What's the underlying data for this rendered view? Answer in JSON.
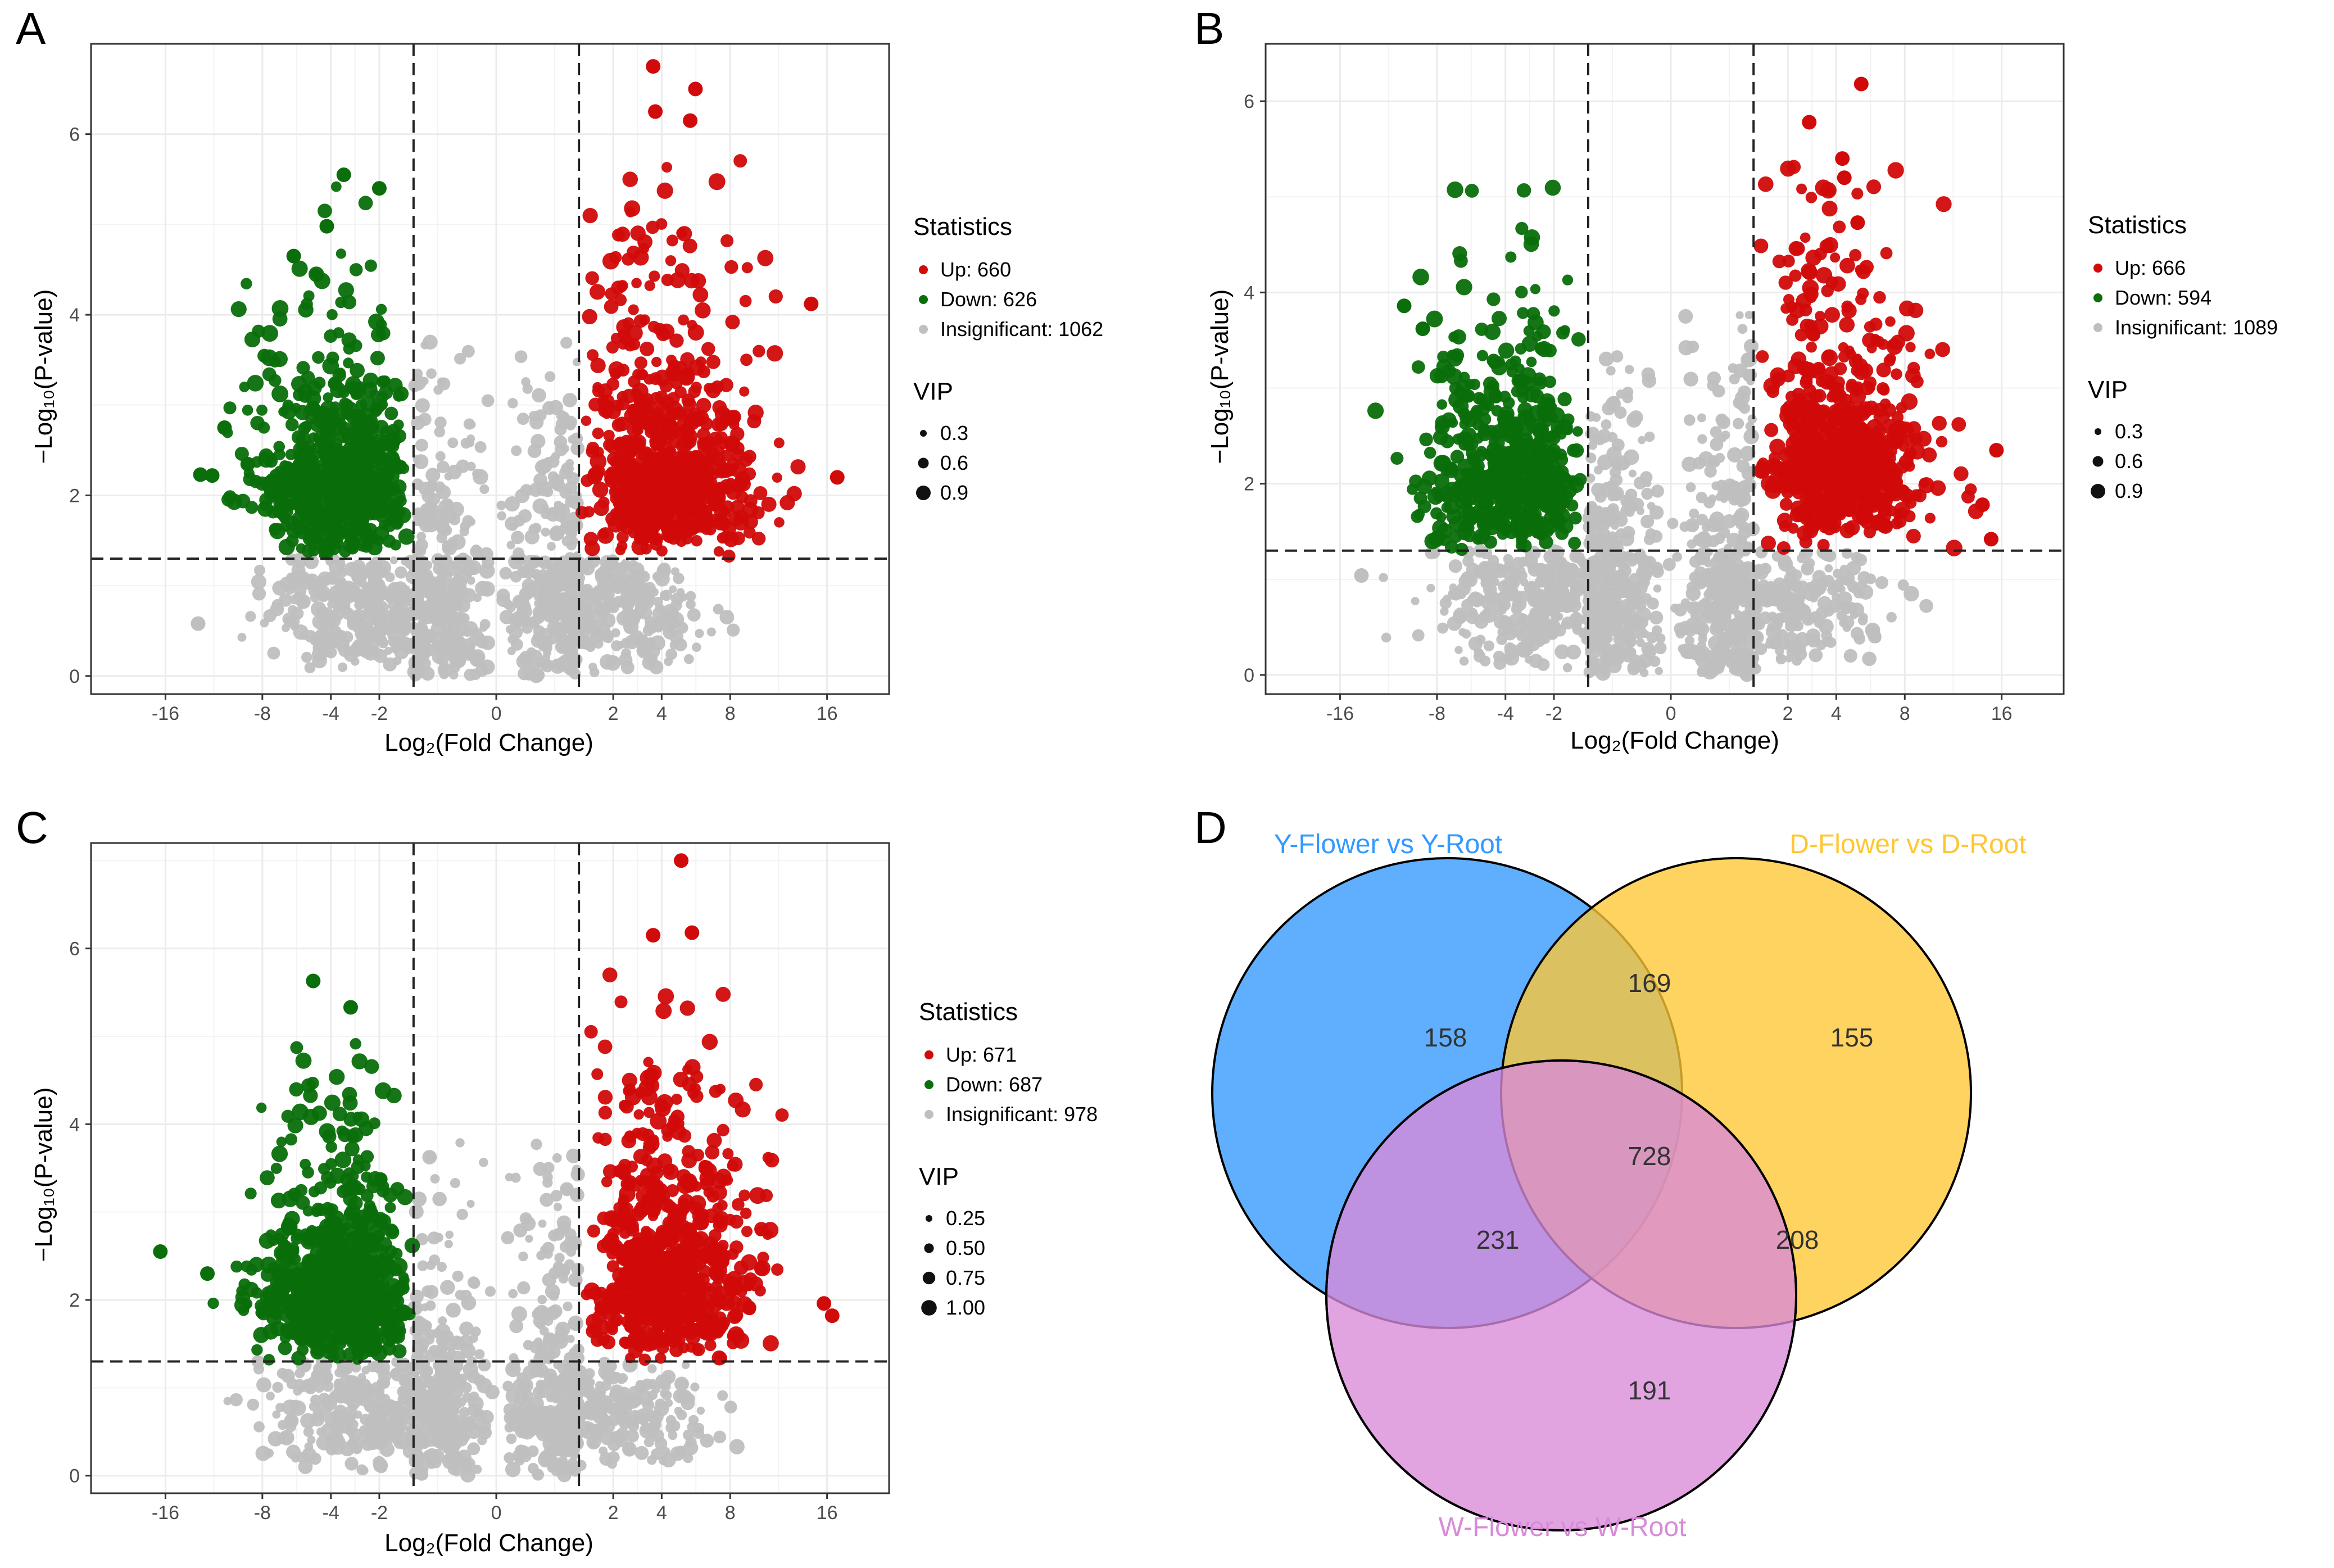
{
  "chart_data": [
    {
      "id": "A",
      "type": "scatter",
      "panel_label": "A",
      "xlabel": "Log₂(Fold Change)",
      "ylabel": "−Log₁₀(P-value)",
      "xticks": [
        "-16",
        "-8",
        "-4",
        "-2",
        "0",
        "2",
        "4",
        "8",
        "16"
      ],
      "yticks": [
        "0",
        "2",
        "4",
        "6"
      ],
      "ylim": [
        -0.2,
        7.0
      ],
      "threshold_log2fc": [
        -1,
        1
      ],
      "threshold_neglog10p": 1.3,
      "legend": {
        "statistics_title": "Statistics",
        "up": "Up: 660",
        "down": "Down: 626",
        "insignificant": "Insignificant: 1062",
        "vip_title": "VIP",
        "vip_sizes": [
          "0.3",
          "0.6",
          "0.9"
        ]
      },
      "counts": {
        "up": 660,
        "down": 626,
        "insignificant": 1062
      },
      "notable_points": [
        {
          "x": 3.6,
          "y": 6.75
        },
        {
          "x": 5.8,
          "y": 6.5
        },
        {
          "x": 3.7,
          "y": 6.25
        },
        {
          "x": 5.5,
          "y": 6.15
        },
        {
          "x": -3.4,
          "y": 5.55
        },
        {
          "x": -2.0,
          "y": 5.4
        },
        {
          "x": -4.2,
          "y": 4.98
        },
        {
          "x": -6.0,
          "y": 4.65
        },
        {
          "x": 14.5,
          "y": 4.12
        },
        {
          "x": 17.0,
          "y": 2.2
        },
        {
          "x": -11.8,
          "y": 2.22
        },
        {
          "x": -12.8,
          "y": 2.23
        },
        {
          "x": -10.8,
          "y": 2.75
        },
        {
          "x": -13.0,
          "y": 0.58
        }
      ]
    },
    {
      "id": "B",
      "type": "scatter",
      "panel_label": "B",
      "xlabel": "Log₂(Fold Change)",
      "ylabel": "−Log₁₀(P-value)",
      "xticks": [
        "-16",
        "-8",
        "-4",
        "-2",
        "0",
        "2",
        "4",
        "8",
        "16"
      ],
      "yticks": [
        "0",
        "2",
        "4",
        "6"
      ],
      "ylim": [
        -0.2,
        6.6
      ],
      "threshold_log2fc": [
        -1,
        1
      ],
      "threshold_neglog10p": 1.3,
      "legend": {
        "statistics_title": "Statistics",
        "up": "Up: 666",
        "down": "Down: 594",
        "insignificant": "Insignificant: 1089",
        "vip_title": "VIP",
        "vip_sizes": [
          "0.3",
          "0.6",
          "0.9"
        ]
      },
      "counts": {
        "up": 666,
        "down": 594,
        "insignificant": 1089
      },
      "notable_points": [
        {
          "x": 5.3,
          "y": 6.18
        },
        {
          "x": 2.8,
          "y": 5.78
        },
        {
          "x": 4.3,
          "y": 5.4
        },
        {
          "x": 4.4,
          "y": 5.2
        },
        {
          "x": 5.1,
          "y": 4.73
        },
        {
          "x": -10.4,
          "y": 3.86
        },
        {
          "x": -9.0,
          "y": 3.62
        },
        {
          "x": 15.5,
          "y": 2.35
        },
        {
          "x": 14.2,
          "y": 1.78
        },
        {
          "x": 15.0,
          "y": 1.42
        },
        {
          "x": -14.0,
          "y": 1.04
        }
      ]
    },
    {
      "id": "C",
      "type": "scatter",
      "panel_label": "C",
      "xlabel": "Log₂(Fold Change)",
      "ylabel": "−Log₁₀(P-value)",
      "xticks": [
        "-16",
        "-8",
        "-4",
        "-2",
        "0",
        "2",
        "4",
        "8",
        "16"
      ],
      "yticks": [
        "0",
        "2",
        "4",
        "6"
      ],
      "ylim": [
        -0.2,
        7.2
      ],
      "threshold_log2fc": [
        -1,
        1
      ],
      "threshold_neglog10p": 1.3,
      "legend": {
        "statistics_title": "Statistics",
        "up": "Up: 671",
        "down": "Down: 687",
        "insignificant": "Insignificant: 978",
        "vip_title": "VIP",
        "vip_sizes": [
          "0.25",
          "0.50",
          "0.75",
          "1.00"
        ]
      },
      "counts": {
        "up": 671,
        "down": 687,
        "insignificant": 978
      },
      "notable_points": [
        {
          "x": 5.0,
          "y": 7.0
        },
        {
          "x": 5.6,
          "y": 6.18
        },
        {
          "x": 3.6,
          "y": 6.15
        },
        {
          "x": -4.9,
          "y": 5.63
        },
        {
          "x": -3.1,
          "y": 5.33
        },
        {
          "x": -16.5,
          "y": 2.55
        },
        {
          "x": -12.2,
          "y": 2.3
        },
        {
          "x": 16.5,
          "y": 1.82
        },
        {
          "x": 15.7,
          "y": 1.96
        }
      ]
    },
    {
      "id": "D",
      "type": "venn",
      "panel_label": "D",
      "sets": [
        {
          "name": "Y-Flower vs Y-Root",
          "color": "#3399ff"
        },
        {
          "name": "D-Flower vs D-Root",
          "color": "#ffc633"
        },
        {
          "name": "W-Flower vs W-Root",
          "color": "#d98ad9"
        }
      ],
      "regions": {
        "Y_only": 158,
        "D_only": 155,
        "W_only": 191,
        "Y_D": 169,
        "Y_W": 231,
        "D_W": 208,
        "Y_D_W": 728
      }
    }
  ],
  "colors": {
    "up": "#d10a0a",
    "down": "#0a6e0a",
    "insignificant": "#bfbfbf",
    "grid": "#ebebeb"
  }
}
